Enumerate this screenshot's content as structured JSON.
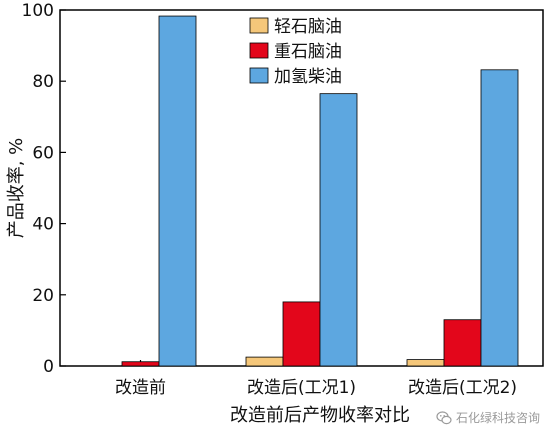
{
  "chart_data": {
    "type": "bar",
    "categories": [
      "改造前",
      "改造后(工况1)",
      "改造后(工况2)"
    ],
    "series": [
      {
        "name": "轻石脑油",
        "values": [
          0,
          2.5,
          1.8
        ],
        "color": "#f5c77a"
      },
      {
        "name": "重石脑油",
        "values": [
          1.2,
          18,
          13
        ],
        "color": "#e3061b"
      },
      {
        "name": "加氢柴油",
        "values": [
          98.3,
          76.5,
          83.2
        ],
        "color": "#5da7e0"
      }
    ],
    "xlabel": "改造前后产物收率对比",
    "ylabel": "产品收率, %",
    "ylim": [
      0,
      100
    ],
    "yticks": [
      0,
      20,
      40,
      60,
      80,
      100
    ],
    "legend_position": "top-center",
    "grid": false
  },
  "watermark": {
    "text": "石化绿科技咨询",
    "icon": "wechat-icon"
  }
}
